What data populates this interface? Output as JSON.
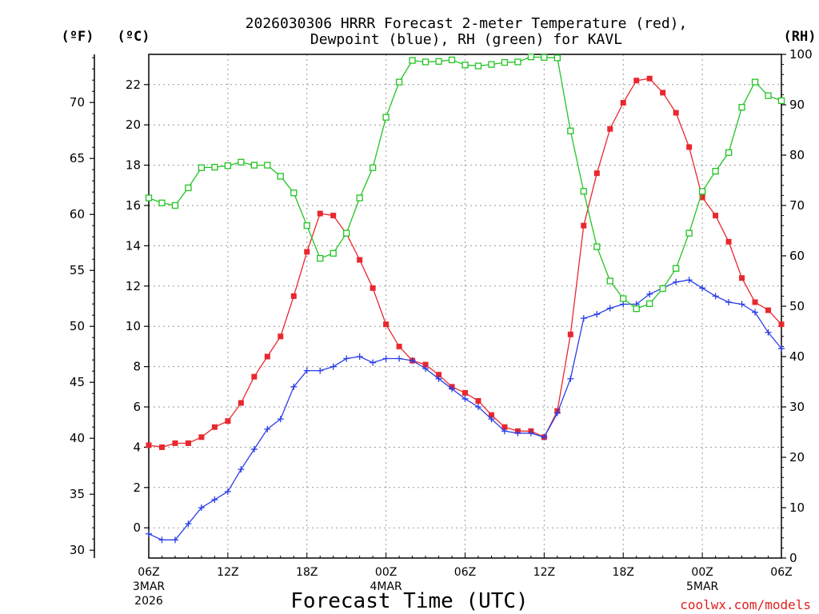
{
  "chart_data": {
    "type": "line",
    "title": [
      "2026030306 HRRR Forecast 2-meter Temperature (red),",
      "Dewpoint (blue), RH (green) for KAVL"
    ],
    "xlabel": "Forecast Time (UTC)",
    "credit": "coolwx.com/models",
    "units": {
      "left_outer": "(ºF)",
      "left_inner": "(ºC)",
      "right": "(RH)"
    },
    "x_range": [
      0,
      48
    ],
    "x_ticks": [
      {
        "hour": 0,
        "label": "06Z",
        "date": "3MAR",
        "year": "2026"
      },
      {
        "hour": 6,
        "label": "12Z"
      },
      {
        "hour": 12,
        "label": "18Z"
      },
      {
        "hour": 18,
        "label": "00Z",
        "date": "4MAR"
      },
      {
        "hour": 24,
        "label": "06Z"
      },
      {
        "hour": 30,
        "label": "12Z"
      },
      {
        "hour": 36,
        "label": "18Z"
      },
      {
        "hour": 42,
        "label": "00Z",
        "date": "5MAR"
      },
      {
        "hour": 48,
        "label": "06Z"
      }
    ],
    "celsius_axis": {
      "range": [
        -1.5,
        23.5
      ],
      "ticks": [
        0,
        2,
        4,
        6,
        8,
        10,
        12,
        14,
        16,
        18,
        20,
        22
      ]
    },
    "fahrenheit_axis": {
      "ticks": [
        30,
        35,
        40,
        45,
        50,
        55,
        60,
        65,
        70
      ]
    },
    "rh_axis": {
      "range": [
        0,
        100
      ],
      "ticks": [
        0,
        10,
        20,
        30,
        40,
        50,
        60,
        70,
        80,
        90,
        100
      ]
    },
    "series": [
      {
        "name": "Temperature",
        "unit": "C",
        "color": "#e8282e",
        "marker": "filled-square",
        "values": [
          4.1,
          4.0,
          4.2,
          4.2,
          4.5,
          5.0,
          5.3,
          6.2,
          7.5,
          8.5,
          9.5,
          11.5,
          13.7,
          15.6,
          15.5,
          14.6,
          13.3,
          11.9,
          10.1,
          9.0,
          8.3,
          8.1,
          7.6,
          7.0,
          6.7,
          6.3,
          5.6,
          5.0,
          4.8,
          4.8,
          4.5,
          5.8,
          9.6,
          15.0,
          17.6,
          19.8,
          21.1,
          22.2,
          22.3,
          21.6,
          20.6,
          18.9,
          16.4,
          15.5,
          14.2,
          12.4,
          11.2,
          10.8,
          10.1
        ]
      },
      {
        "name": "Dewpoint",
        "unit": "C",
        "color": "#2a3ee8",
        "marker": "plus",
        "values": [
          -0.3,
          -0.6,
          -0.6,
          0.2,
          1.0,
          1.4,
          1.8,
          2.9,
          3.9,
          4.9,
          5.4,
          7.0,
          7.8,
          7.8,
          8.0,
          8.4,
          8.5,
          8.2,
          8.4,
          8.4,
          8.3,
          7.9,
          7.4,
          6.9,
          6.4,
          6.0,
          5.4,
          4.8,
          4.7,
          4.7,
          4.5,
          5.7,
          7.4,
          10.4,
          10.6,
          10.9,
          11.1,
          11.1,
          11.6,
          11.9,
          12.2,
          12.3,
          11.9,
          11.5,
          11.2,
          11.1,
          10.7,
          9.7,
          8.9
        ]
      },
      {
        "name": "RH",
        "unit": "%",
        "color": "#22c422",
        "marker": "open-square",
        "values": [
          71.5,
          70.5,
          70.0,
          73.5,
          77.5,
          77.6,
          77.9,
          78.6,
          78.0,
          78.0,
          75.8,
          72.5,
          66.0,
          59.5,
          60.5,
          64.5,
          71.5,
          77.5,
          87.5,
          94.5,
          98.8,
          98.5,
          98.6,
          98.9,
          97.9,
          97.7,
          98.0,
          98.4,
          98.5,
          99.5,
          99.4,
          99.3,
          84.8,
          72.8,
          61.8,
          55.0,
          51.5,
          49.5,
          50.5,
          53.5,
          57.5,
          64.5,
          72.8,
          76.8,
          80.5,
          89.5,
          94.5,
          91.8,
          90.8
        ]
      }
    ]
  }
}
